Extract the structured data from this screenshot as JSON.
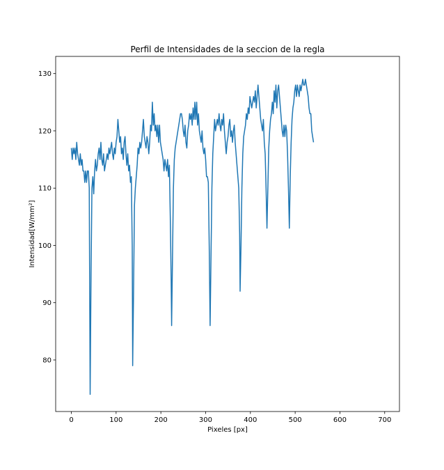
{
  "chart_data": {
    "type": "line",
    "title": "Perfil de Intensidades de la seccion de la regla",
    "xlabel": "Pixeles [px]",
    "ylabel": "Intensidad[W/mm²]",
    "xlim": [
      -35,
      733
    ],
    "ylim": [
      71.0,
      133.0
    ],
    "xticks": [
      0,
      100,
      200,
      300,
      400,
      500,
      600,
      700
    ],
    "yticks": [
      80,
      90,
      100,
      110,
      120,
      130
    ],
    "grid": false,
    "series": [
      {
        "color": "#1f77b4",
        "points": [
          [
            0,
            117
          ],
          [
            2,
            115
          ],
          [
            4,
            117
          ],
          [
            6,
            116
          ],
          [
            8,
            117
          ],
          [
            10,
            115
          ],
          [
            12,
            118
          ],
          [
            14,
            116
          ],
          [
            16,
            115
          ],
          [
            18,
            114
          ],
          [
            20,
            116
          ],
          [
            22,
            114
          ],
          [
            24,
            115
          ],
          [
            26,
            113
          ],
          [
            28,
            113
          ],
          [
            30,
            111
          ],
          [
            32,
            113
          ],
          [
            34,
            111
          ],
          [
            36,
            113
          ],
          [
            38,
            113
          ],
          [
            40,
            110
          ],
          [
            42,
            74
          ],
          [
            44,
            95
          ],
          [
            46,
            110
          ],
          [
            48,
            112
          ],
          [
            50,
            109
          ],
          [
            52,
            113
          ],
          [
            54,
            115
          ],
          [
            56,
            113
          ],
          [
            58,
            114
          ],
          [
            60,
            116
          ],
          [
            62,
            117
          ],
          [
            64,
            115
          ],
          [
            66,
            118
          ],
          [
            68,
            115
          ],
          [
            70,
            114
          ],
          [
            72,
            116
          ],
          [
            74,
            113
          ],
          [
            76,
            114
          ],
          [
            78,
            115
          ],
          [
            80,
            116
          ],
          [
            82,
            115
          ],
          [
            84,
            117
          ],
          [
            86,
            116
          ],
          [
            88,
            117
          ],
          [
            90,
            118
          ],
          [
            92,
            116
          ],
          [
            94,
            115
          ],
          [
            96,
            117
          ],
          [
            98,
            116
          ],
          [
            100,
            118
          ],
          [
            102,
            119
          ],
          [
            104,
            122
          ],
          [
            106,
            120
          ],
          [
            108,
            118
          ],
          [
            110,
            119
          ],
          [
            112,
            116
          ],
          [
            114,
            117
          ],
          [
            116,
            115
          ],
          [
            118,
            118
          ],
          [
            120,
            119
          ],
          [
            122,
            116
          ],
          [
            124,
            114
          ],
          [
            126,
            116
          ],
          [
            128,
            113
          ],
          [
            130,
            114
          ],
          [
            132,
            111
          ],
          [
            134,
            112
          ],
          [
            136,
            100
          ],
          [
            137,
            79
          ],
          [
            139,
            92
          ],
          [
            141,
            107
          ],
          [
            143,
            110
          ],
          [
            145,
            112
          ],
          [
            147,
            114
          ],
          [
            149,
            117
          ],
          [
            151,
            116
          ],
          [
            153,
            118
          ],
          [
            155,
            117
          ],
          [
            157,
            118
          ],
          [
            159,
            120
          ],
          [
            161,
            122
          ],
          [
            163,
            119
          ],
          [
            165,
            118
          ],
          [
            167,
            117
          ],
          [
            169,
            119
          ],
          [
            171,
            118
          ],
          [
            173,
            116
          ],
          [
            175,
            118
          ],
          [
            177,
            121
          ],
          [
            179,
            120
          ],
          [
            181,
            125
          ],
          [
            183,
            121
          ],
          [
            185,
            123
          ],
          [
            187,
            120
          ],
          [
            189,
            121
          ],
          [
            191,
            119
          ],
          [
            193,
            121
          ],
          [
            195,
            118
          ],
          [
            197,
            121
          ],
          [
            199,
            118
          ],
          [
            201,
            117
          ],
          [
            203,
            116
          ],
          [
            205,
            115
          ],
          [
            207,
            113
          ],
          [
            209,
            115
          ],
          [
            211,
            114
          ],
          [
            213,
            113
          ],
          [
            215,
            115
          ],
          [
            217,
            112
          ],
          [
            219,
            114
          ],
          [
            221,
            105
          ],
          [
            223,
            94
          ],
          [
            224,
            86
          ],
          [
            226,
            98
          ],
          [
            228,
            110
          ],
          [
            230,
            115
          ],
          [
            232,
            117
          ],
          [
            234,
            118
          ],
          [
            236,
            119
          ],
          [
            238,
            120
          ],
          [
            240,
            121
          ],
          [
            242,
            122
          ],
          [
            244,
            123
          ],
          [
            246,
            123
          ],
          [
            248,
            122
          ],
          [
            250,
            120
          ],
          [
            252,
            119
          ],
          [
            254,
            121
          ],
          [
            256,
            118
          ],
          [
            258,
            117
          ],
          [
            260,
            120
          ],
          [
            262,
            121
          ],
          [
            264,
            123
          ],
          [
            266,
            122
          ],
          [
            268,
            123
          ],
          [
            270,
            121
          ],
          [
            272,
            124
          ],
          [
            274,
            122
          ],
          [
            276,
            125
          ],
          [
            278,
            122
          ],
          [
            280,
            125
          ],
          [
            282,
            121
          ],
          [
            284,
            123
          ],
          [
            286,
            120
          ],
          [
            288,
            119
          ],
          [
            290,
            118
          ],
          [
            292,
            120
          ],
          [
            294,
            117
          ],
          [
            296,
            116
          ],
          [
            298,
            117
          ],
          [
            300,
            115
          ],
          [
            302,
            112
          ],
          [
            304,
            112
          ],
          [
            306,
            111
          ],
          [
            308,
            100
          ],
          [
            310,
            86
          ],
          [
            312,
            98
          ],
          [
            314,
            110
          ],
          [
            316,
            116
          ],
          [
            318,
            119
          ],
          [
            320,
            122
          ],
          [
            322,
            120
          ],
          [
            324,
            121
          ],
          [
            326,
            122
          ],
          [
            328,
            121
          ],
          [
            330,
            123
          ],
          [
            332,
            121
          ],
          [
            334,
            120
          ],
          [
            336,
            122
          ],
          [
            338,
            121
          ],
          [
            340,
            123
          ],
          [
            342,
            120
          ],
          [
            344,
            118
          ],
          [
            346,
            116
          ],
          [
            348,
            118
          ],
          [
            350,
            119
          ],
          [
            352,
            121
          ],
          [
            354,
            122
          ],
          [
            356,
            119
          ],
          [
            358,
            120
          ],
          [
            360,
            118
          ],
          [
            362,
            120
          ],
          [
            364,
            121
          ],
          [
            366,
            118
          ],
          [
            368,
            116
          ],
          [
            370,
            114
          ],
          [
            372,
            112
          ],
          [
            374,
            110
          ],
          [
            376,
            102
          ],
          [
            377,
            92
          ],
          [
            379,
            100
          ],
          [
            381,
            110
          ],
          [
            383,
            116
          ],
          [
            385,
            119
          ],
          [
            387,
            120
          ],
          [
            389,
            121
          ],
          [
            391,
            123
          ],
          [
            393,
            122
          ],
          [
            395,
            124
          ],
          [
            397,
            123
          ],
          [
            399,
            126
          ],
          [
            401,
            125
          ],
          [
            403,
            124
          ],
          [
            405,
            125
          ],
          [
            407,
            126
          ],
          [
            409,
            125
          ],
          [
            411,
            127
          ],
          [
            413,
            124
          ],
          [
            415,
            126
          ],
          [
            417,
            128
          ],
          [
            419,
            126
          ],
          [
            421,
            124
          ],
          [
            423,
            122
          ],
          [
            425,
            121
          ],
          [
            427,
            120
          ],
          [
            429,
            122
          ],
          [
            431,
            118
          ],
          [
            433,
            116
          ],
          [
            435,
            110
          ],
          [
            437,
            103
          ],
          [
            439,
            110
          ],
          [
            441,
            117
          ],
          [
            443,
            120
          ],
          [
            445,
            122
          ],
          [
            447,
            123
          ],
          [
            449,
            125
          ],
          [
            451,
            123
          ],
          [
            453,
            127
          ],
          [
            455,
            125
          ],
          [
            457,
            128
          ],
          [
            459,
            124
          ],
          [
            461,
            127
          ],
          [
            463,
            128
          ],
          [
            465,
            126
          ],
          [
            467,
            124
          ],
          [
            469,
            122
          ],
          [
            471,
            120
          ],
          [
            473,
            119
          ],
          [
            475,
            121
          ],
          [
            477,
            119
          ],
          [
            479,
            121
          ],
          [
            481,
            120
          ],
          [
            483,
            116
          ],
          [
            485,
            110
          ],
          [
            487,
            103
          ],
          [
            489,
            112
          ],
          [
            491,
            118
          ],
          [
            493,
            122
          ],
          [
            495,
            124
          ],
          [
            497,
            125
          ],
          [
            499,
            127
          ],
          [
            501,
            128
          ],
          [
            503,
            126
          ],
          [
            505,
            128
          ],
          [
            507,
            127
          ],
          [
            509,
            126
          ],
          [
            511,
            128
          ],
          [
            513,
            127
          ],
          [
            515,
            128
          ],
          [
            517,
            129
          ],
          [
            519,
            128
          ],
          [
            521,
            128
          ],
          [
            523,
            129
          ],
          [
            525,
            128
          ],
          [
            527,
            127
          ],
          [
            529,
            126
          ],
          [
            531,
            124
          ],
          [
            533,
            123
          ],
          [
            535,
            123
          ],
          [
            537,
            120
          ],
          [
            539,
            119
          ],
          [
            541,
            118
          ]
        ]
      }
    ]
  }
}
